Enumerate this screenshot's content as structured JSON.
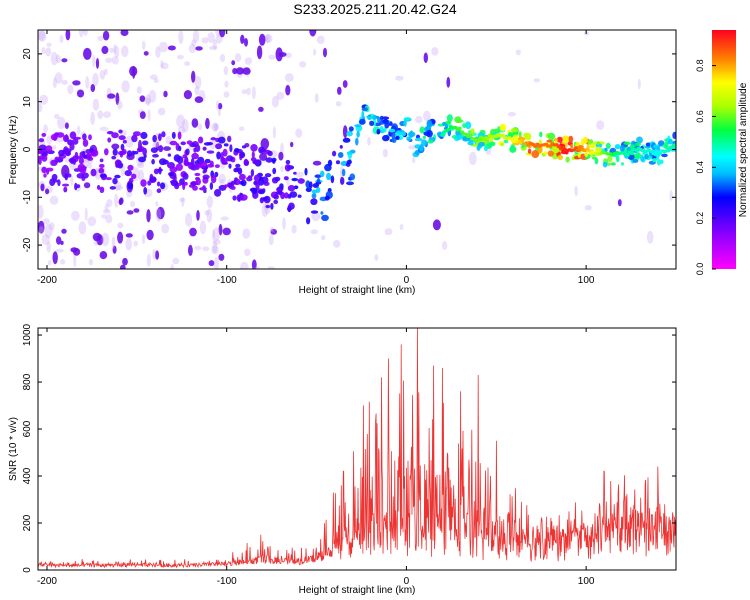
{
  "page": {
    "title": "S233.2025.211.20.42.G24"
  },
  "colorbar": {
    "label": "Normalized spectral amplitude",
    "ticks": [
      "0.0",
      "0.2",
      "0.4",
      "0.6",
      "0.8"
    ],
    "tick_values": [
      0.0,
      0.2,
      0.4,
      0.6,
      0.8
    ],
    "range": [
      0,
      0.94
    ]
  },
  "chart_data": [
    {
      "type": "heatmap",
      "title": "S233.2025.211.20.42.G24",
      "xlabel": "Height of straight line (km)",
      "ylabel": "Frequency (Hz)",
      "xlim": [
        -205,
        150
      ],
      "ylim": [
        -25,
        25
      ],
      "xticks": [
        -200,
        -100,
        0,
        100
      ],
      "xtick_labels": [
        "-200",
        "-100",
        "0",
        "100"
      ],
      "yticks": [
        -20,
        -10,
        0,
        10,
        20
      ],
      "ytick_labels": [
        "-20",
        "-10",
        "0",
        "10",
        "20"
      ],
      "colormap": "hsv (magenta-blue-cyan-green-yellow-red)",
      "trace": {
        "x": [
          -205,
          -180,
          -160,
          -140,
          -120,
          -100,
          -80,
          -70,
          -60,
          -55,
          -50,
          -45,
          -40,
          -35,
          -30,
          -25,
          -20,
          -15,
          -10,
          -5,
          0,
          5,
          10,
          15,
          20,
          25,
          30,
          40,
          50,
          60,
          70,
          80,
          90,
          100,
          110,
          120,
          130,
          140,
          150
        ],
        "frequency": [
          -2,
          -3,
          -2,
          -3,
          -2,
          -4,
          -6,
          -6,
          -7,
          -9,
          -11,
          -10,
          -6,
          -4,
          0,
          7,
          8,
          5,
          4,
          2,
          5,
          0,
          3,
          4,
          3,
          5,
          4,
          2,
          3,
          2,
          1,
          1,
          0,
          0,
          -1,
          -1,
          0,
          -1,
          1
        ],
        "amplitude": [
          0.18,
          0.2,
          0.22,
          0.22,
          0.2,
          0.22,
          0.24,
          0.24,
          0.26,
          0.32,
          0.38,
          0.36,
          0.34,
          0.36,
          0.4,
          0.44,
          0.48,
          0.44,
          0.42,
          0.4,
          0.45,
          0.42,
          0.5,
          0.46,
          0.5,
          0.55,
          0.58,
          0.6,
          0.66,
          0.72,
          0.85,
          0.84,
          0.92,
          0.8,
          0.6,
          0.5,
          0.48,
          0.45,
          0.5
        ]
      }
    },
    {
      "type": "line",
      "xlabel": "Height of straight line (km)",
      "ylabel": "SNR (10 * v/v)",
      "xlim": [
        -205,
        150
      ],
      "ylim": [
        0,
        1030
      ],
      "xticks": [
        -200,
        -100,
        0,
        100
      ],
      "xtick_labels": [
        "-200",
        "-100",
        "0",
        "100"
      ],
      "yticks": [
        0,
        200,
        400,
        600,
        800,
        1000
      ],
      "ytick_labels": [
        "0",
        "200",
        "400",
        "600",
        "800",
        "1000"
      ],
      "color": "#ee3333",
      "envelope": {
        "x": [
          -205,
          -180,
          -160,
          -140,
          -120,
          -100,
          -90,
          -80,
          -70,
          -60,
          -50,
          -45,
          -40,
          -35,
          -30,
          -25,
          -20,
          -15,
          -10,
          -5,
          0,
          5,
          10,
          15,
          20,
          25,
          30,
          35,
          40,
          45,
          50,
          60,
          70,
          80,
          90,
          100,
          110,
          120,
          130,
          140,
          150
        ],
        "baseline": [
          20,
          20,
          20,
          20,
          20,
          25,
          35,
          45,
          40,
          35,
          50,
          70,
          100,
          150,
          180,
          200,
          220,
          200,
          210,
          200,
          210,
          220,
          200,
          200,
          210,
          220,
          210,
          200,
          190,
          180,
          160,
          150,
          160,
          170,
          180,
          200,
          220,
          240,
          250,
          240,
          250
        ],
        "peak": [
          40,
          40,
          40,
          40,
          40,
          60,
          100,
          150,
          100,
          80,
          130,
          230,
          350,
          500,
          650,
          700,
          760,
          900,
          860,
          760,
          1030,
          900,
          720,
          800,
          860,
          760,
          740,
          700,
          640,
          560,
          460,
          400,
          380,
          360,
          360,
          380,
          410,
          460,
          450,
          430,
          440
        ],
        "spikes": [
          {
            "x": -81,
            "y": 150
          },
          {
            "x": -35,
            "y": 420
          },
          {
            "x": -24,
            "y": 700
          },
          {
            "x": -10,
            "y": 900
          },
          {
            "x": -3,
            "y": 960
          },
          {
            "x": 6,
            "y": 1030
          },
          {
            "x": 15,
            "y": 870
          },
          {
            "x": 20,
            "y": 860
          },
          {
            "x": 30,
            "y": 760
          },
          {
            "x": 40,
            "y": 830
          },
          {
            "x": 50,
            "y": 550
          },
          {
            "x": 110,
            "y": 420
          },
          {
            "x": 140,
            "y": 440
          }
        ]
      }
    }
  ]
}
